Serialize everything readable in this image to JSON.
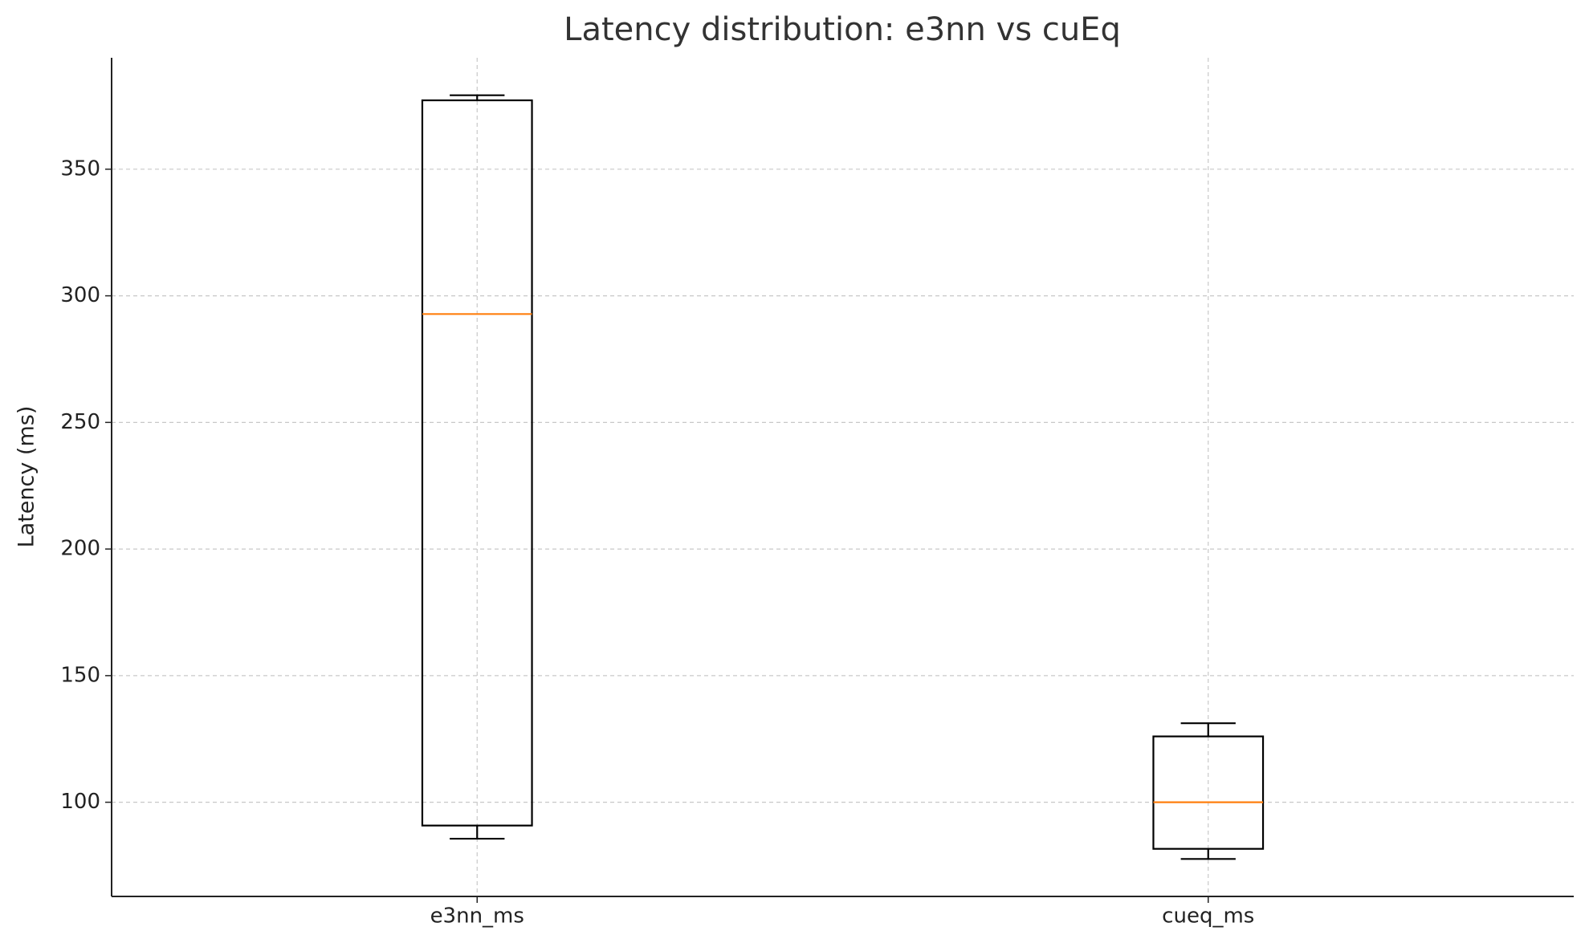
{
  "chart_data": {
    "type": "box",
    "title": "Latency distribution: e3nn vs cuEq",
    "y_label": "Latency (ms)",
    "categories": [
      "e3nn_ms",
      "cueq_ms"
    ],
    "boxes": [
      {
        "min": 85.6,
        "q1": 90.8,
        "median": 292.8,
        "q3": 377.2,
        "max": 379.2
      },
      {
        "min": 77.6,
        "q1": 81.6,
        "median": 100,
        "q3": 126,
        "max": 131.2
      }
    ],
    "box_color": "#000000",
    "median_color": "#ff7f0e",
    "ylim": [
      62.8,
      394
    ],
    "yticks": [
      100,
      150,
      200,
      250,
      300,
      350
    ],
    "grid": true
  }
}
